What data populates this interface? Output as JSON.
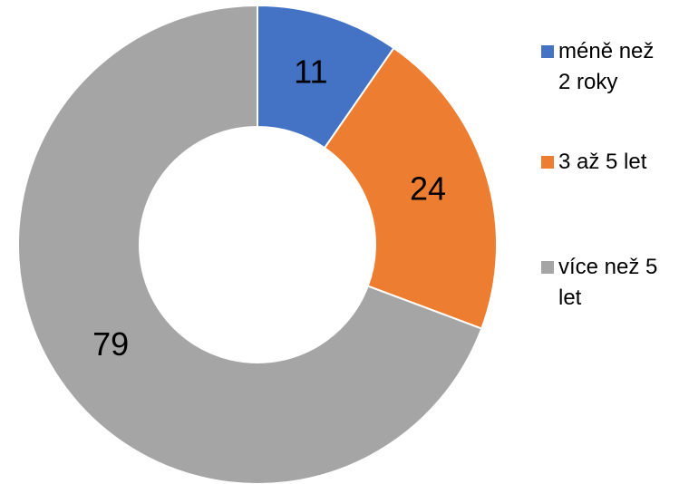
{
  "chart_data": {
    "type": "donut",
    "categories": [
      "méně než 2 roky",
      "3 až 5 let",
      "více než 5 let"
    ],
    "values": [
      11,
      24,
      79
    ],
    "colors": [
      "#4472c4",
      "#ed7d31",
      "#a5a5a5"
    ],
    "legend": "right"
  }
}
